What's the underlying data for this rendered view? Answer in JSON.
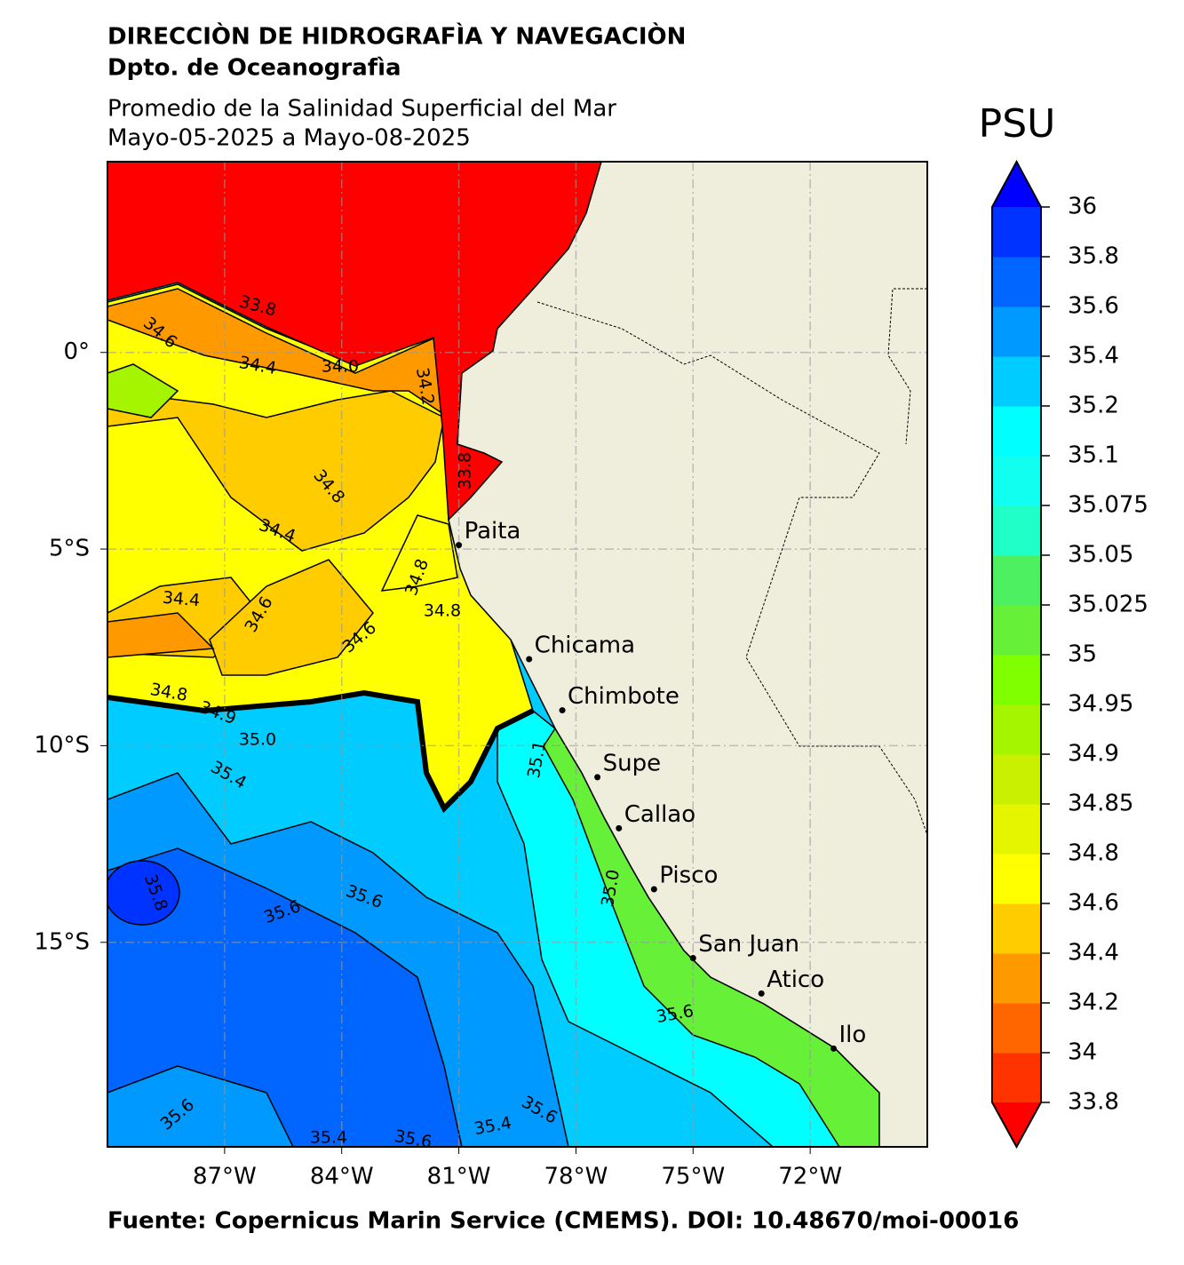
{
  "header": {
    "title": "DIRECCIÒN DE HIDROGRAFÌA Y NAVEGACIÒN",
    "subtitle": "Dpto. de Oceanografìa",
    "map_title": "Promedio de la Salinidad Superficial del Mar",
    "date_range": "Mayo-05-2025 a Mayo-08-2025"
  },
  "map": {
    "xlim": [
      -90,
      -69
    ],
    "ylim": [
      -20.2,
      4.85
    ],
    "xticks": [
      {
        "value": -87,
        "label": "87°W"
      },
      {
        "value": -84,
        "label": "84°W"
      },
      {
        "value": -81,
        "label": "81°W"
      },
      {
        "value": -78,
        "label": "78°W"
      },
      {
        "value": -75,
        "label": "75°W"
      },
      {
        "value": -72,
        "label": "72°W"
      }
    ],
    "yticks": [
      {
        "value": 0,
        "label": "0°"
      },
      {
        "value": -5,
        "label": "5°S"
      },
      {
        "value": -10,
        "label": "10°S"
      },
      {
        "value": -15,
        "label": "15°S"
      }
    ],
    "grid": true,
    "land_color": "#efeedd",
    "cities": [
      {
        "name": "Paita",
        "lon": -81.0,
        "lat": -4.9
      },
      {
        "name": "Chicama",
        "lon": -79.2,
        "lat": -7.8
      },
      {
        "name": "Chimbote",
        "lon": -78.35,
        "lat": -9.1
      },
      {
        "name": "Supe",
        "lon": -77.45,
        "lat": -10.8
      },
      {
        "name": "Callao",
        "lon": -76.9,
        "lat": -12.1
      },
      {
        "name": "Pisco",
        "lon": -76.0,
        "lat": -13.65
      },
      {
        "name": "San Juan",
        "lon": -75.0,
        "lat": -15.4
      },
      {
        "name": "Atico",
        "lon": -73.25,
        "lat": -16.3
      },
      {
        "name": "Ilo",
        "lon": -71.4,
        "lat": -17.7
      }
    ],
    "contour_labels": [
      "33.8",
      "34.6",
      "34.4",
      "34.0",
      "34.2",
      "33.8",
      "34.8",
      "34.4",
      "34.4",
      "34.6",
      "34.8",
      "34.8",
      "34.6",
      "34.8",
      "34.9",
      "35.0",
      "35.4",
      "35.1",
      "35.0",
      "35.6",
      "35.6",
      "35.8",
      "35.6",
      "35.4",
      "35.6",
      "35.4",
      "35.6",
      "35.6"
    ]
  },
  "colorbar": {
    "title": "PSU",
    "ticks": [
      33.8,
      34,
      34.2,
      34.4,
      34.6,
      34.8,
      34.85,
      34.9,
      34.95,
      35,
      35.025,
      35.05,
      35.075,
      35.1,
      35.2,
      35.4,
      35.6,
      35.8,
      36
    ],
    "colors": [
      "#ff3300",
      "#ff6600",
      "#ff9900",
      "#ffcc00",
      "#ffff00",
      "#e5f500",
      "#c8f000",
      "#a5f500",
      "#80ff00",
      "#66f038",
      "#4cf060",
      "#20ffc8",
      "#10fff0",
      "#00ffff",
      "#00ccff",
      "#0099ff",
      "#0066ff",
      "#0033ff"
    ],
    "under_color": "#ff0000",
    "over_color": "#0000ff"
  },
  "footer": "Fuente: Copernicus Marin Service (CMEMS). DOI: 10.48670/moi-00016"
}
